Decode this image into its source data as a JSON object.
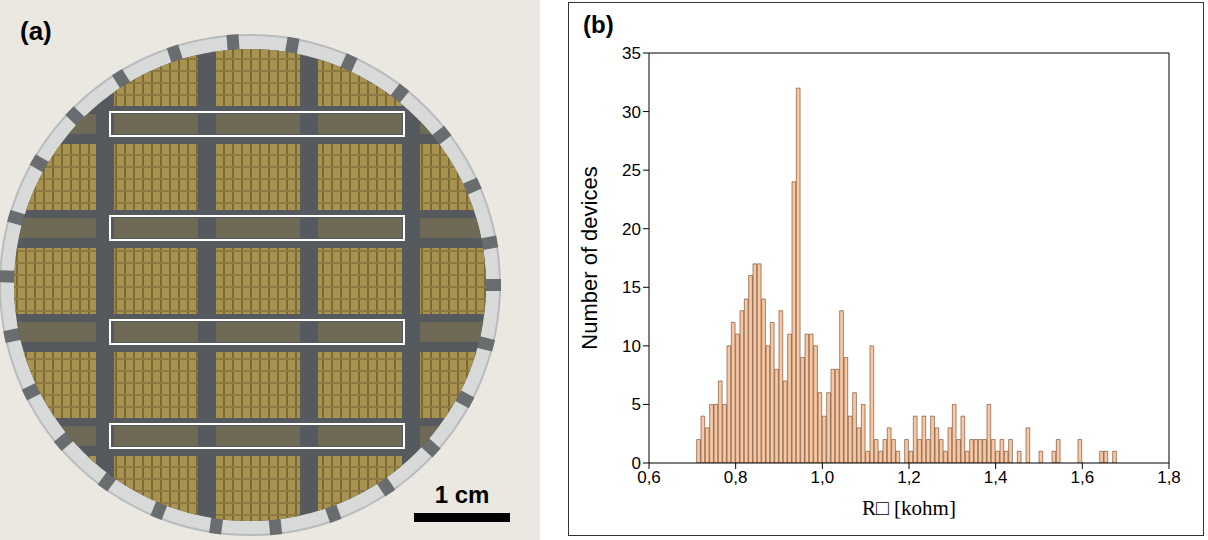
{
  "photo": {
    "label": "(a)",
    "scale_bar": "1 cm"
  },
  "chart_data": {
    "type": "histogram",
    "panel_label": "(b)",
    "x_label": "R□ [kohm]",
    "y_label": "Number of devices",
    "color": "#f7c8a4",
    "grid": false,
    "xlim": [
      0.6,
      1.8
    ],
    "xticks": [
      {
        "value": 0.6,
        "label": "0,6"
      },
      {
        "value": 0.8,
        "label": "0,8"
      },
      {
        "value": 1.0,
        "label": "1,0"
      },
      {
        "value": 1.2,
        "label": "1,2"
      },
      {
        "value": 1.4,
        "label": "1,4"
      },
      {
        "value": 1.6,
        "label": "1,6"
      },
      {
        "value": 1.8,
        "label": "1,8"
      }
    ],
    "ylim": [
      0,
      35
    ],
    "yticks": [
      0,
      5,
      10,
      15,
      20,
      25,
      30,
      35
    ],
    "bins": [
      0.71,
      0.72,
      0.73,
      0.74,
      0.75,
      0.76,
      0.77,
      0.78,
      0.79,
      0.8,
      0.81,
      0.82,
      0.83,
      0.84,
      0.85,
      0.86,
      0.87,
      0.88,
      0.89,
      0.9,
      0.91,
      0.92,
      0.93,
      0.94,
      0.95,
      0.96,
      0.97,
      0.98,
      0.99,
      1.0,
      1.01,
      1.02,
      1.03,
      1.04,
      1.05,
      1.06,
      1.07,
      1.08,
      1.09,
      1.1,
      1.11,
      1.12,
      1.13,
      1.14,
      1.15,
      1.16,
      1.17,
      1.18,
      1.19,
      1.2,
      1.21,
      1.22,
      1.23,
      1.24,
      1.25,
      1.26,
      1.27,
      1.28,
      1.29,
      1.3,
      1.31,
      1.32,
      1.33,
      1.34,
      1.35,
      1.36,
      1.37,
      1.38,
      1.39,
      1.4,
      1.41,
      1.42,
      1.43,
      1.44,
      1.45,
      1.46,
      1.47,
      1.48,
      1.49,
      1.5,
      1.51,
      1.52,
      1.53,
      1.54,
      1.55,
      1.56,
      1.57,
      1.58,
      1.59,
      1.6,
      1.61,
      1.62,
      1.63,
      1.64,
      1.65,
      1.66,
      1.67,
      1.68
    ],
    "counts": [
      2,
      4,
      3,
      5,
      5,
      7,
      5,
      10,
      12,
      11,
      13,
      14,
      16,
      17,
      17,
      14,
      10,
      12,
      8,
      13,
      7,
      11,
      24,
      32,
      9,
      11,
      11,
      10,
      6,
      4,
      6,
      8,
      8,
      13,
      9,
      4,
      6,
      3,
      5,
      1,
      10,
      2,
      1,
      2,
      3,
      2,
      1,
      0,
      2,
      1,
      4,
      2,
      4,
      2,
      4,
      3,
      2,
      1,
      3,
      5,
      2,
      4,
      1,
      2,
      2,
      2,
      2,
      5,
      2,
      1,
      2,
      1,
      2,
      0,
      1,
      0,
      3,
      0,
      0,
      1,
      0,
      0,
      1,
      2,
      0,
      0,
      0,
      0,
      2,
      0,
      0,
      0,
      0,
      1,
      1,
      0,
      1
    ]
  }
}
